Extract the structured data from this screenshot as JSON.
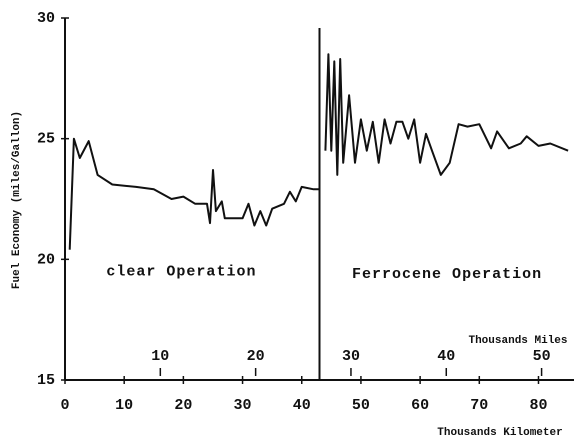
{
  "chart_data": {
    "type": "line",
    "y_label": "Fuel Economy (miles/Gallon)",
    "x_label": "Thousands Kilometer",
    "x2_label": "Thousands Miles",
    "xlim": [
      0,
      86
    ],
    "xticks": [
      0,
      10,
      20,
      30,
      40,
      50,
      60,
      70,
      80
    ],
    "x2lim": [
      0,
      53.4
    ],
    "x2ticks": [
      10,
      20,
      30,
      40,
      50
    ],
    "ylim": [
      15,
      30
    ],
    "yticks": [
      15,
      20,
      25,
      30
    ],
    "grid": false,
    "vline": 43,
    "annotations": [
      {
        "text": "clear Operation",
        "x": 7,
        "y": 19.5
      },
      {
        "text": "Ferrocene Operation",
        "x": 48.5,
        "y": 19.4
      }
    ],
    "series": [
      {
        "color": "#111111",
        "x": [
          0.8,
          1.5,
          2.5,
          4,
          5.5,
          8,
          12,
          15,
          18,
          20,
          22,
          24,
          24.5,
          25,
          25.5,
          26.5,
          27,
          30,
          31,
          32,
          33,
          34,
          35,
          37,
          38,
          39,
          40,
          42,
          43
        ],
        "values": [
          20.4,
          25,
          24.2,
          24.9,
          23.5,
          23.1,
          23.0,
          22.9,
          22.5,
          22.6,
          22.3,
          22.3,
          21.5,
          23.7,
          22.0,
          22.4,
          21.7,
          21.7,
          22.3,
          21.4,
          22.0,
          21.4,
          22.1,
          22.3,
          22.8,
          22.4,
          23.0,
          22.9,
          22.9
        ]
      },
      {
        "color": "#111111",
        "x": [
          44,
          44.5,
          45,
          45.5,
          46,
          46.5,
          47,
          48,
          49,
          50,
          51,
          52,
          53,
          54,
          55,
          56,
          57,
          58,
          59,
          60,
          61,
          62,
          63.5,
          65,
          66.5,
          68,
          70,
          72,
          73,
          75,
          77,
          78,
          80,
          82,
          85
        ],
        "values": [
          24.5,
          28.5,
          24.5,
          28.2,
          23.5,
          28.3,
          24.0,
          26.8,
          24.0,
          25.8,
          24.5,
          25.7,
          24.0,
          25.8,
          24.8,
          25.7,
          25.7,
          25.0,
          25.8,
          24.0,
          25.2,
          24.5,
          23.5,
          24.0,
          25.6,
          25.5,
          25.6,
          24.6,
          25.3,
          24.6,
          24.8,
          25.1,
          24.7,
          24.8,
          24.5
        ]
      }
    ]
  }
}
